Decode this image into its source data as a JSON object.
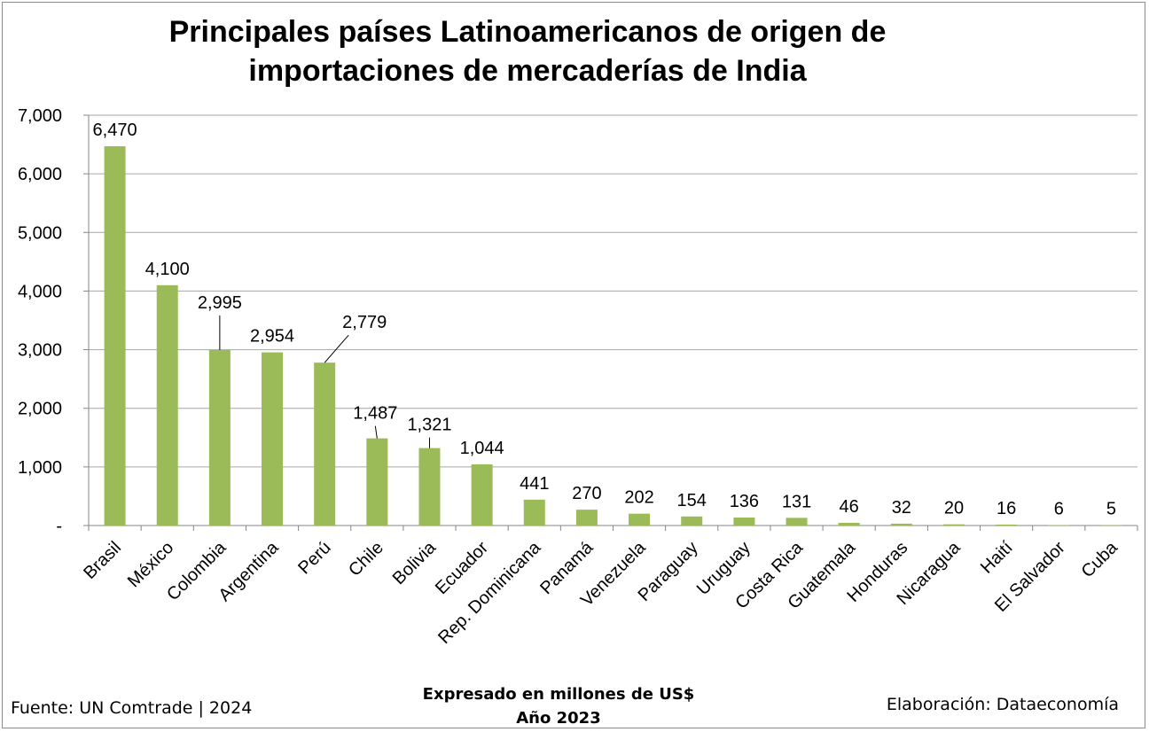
{
  "chart_data": {
    "type": "bar",
    "title": "Principales países Latinoamericanos de origen de\nimportaciones de mercaderías de India",
    "categories": [
      "Brasil",
      "México",
      "Colombia",
      "Argentina",
      "Perú",
      "Chile",
      "Bolivia",
      "Ecuador",
      "Rep. Dominicana",
      "Panamá",
      "Venezuela",
      "Paraguay",
      "Uruguay",
      "Costa Rica",
      "Guatemala",
      "Honduras",
      "Nicaragua",
      "Haití",
      "El Salvador",
      "Cuba"
    ],
    "values": [
      6470,
      4100,
      2995,
      2954,
      2779,
      1487,
      1321,
      1044,
      441,
      270,
      202,
      154,
      136,
      131,
      46,
      32,
      20,
      16,
      6,
      5
    ],
    "data_labels": [
      "6,470",
      "4,100",
      "2,995",
      "2,954",
      "2,779",
      "1,487",
      "1,321",
      "1,044",
      "441",
      "270",
      "202",
      "154",
      "136",
      "131",
      "46",
      "32",
      "20",
      "16",
      "6",
      "5"
    ],
    "ylim": [
      0,
      7000
    ],
    "yticks": [
      0,
      1000,
      2000,
      3000,
      4000,
      5000,
      6000,
      7000
    ],
    "ytick_labels": [
      "-",
      "1,000",
      "2,000",
      "3,000",
      "4,000",
      "5,000",
      "6,000",
      "7,000"
    ],
    "grid": true,
    "bar_color": "#9bbb59",
    "gridline_color": "#a6a6a6",
    "xlabel": "",
    "ylabel": ""
  },
  "footer": {
    "source": "Fuente: UN Comtrade | 2024",
    "note_line1": "Expresado en millones de US$",
    "note_line2": "Año 2023",
    "credit": "Elaboración: Dataeconomía"
  }
}
